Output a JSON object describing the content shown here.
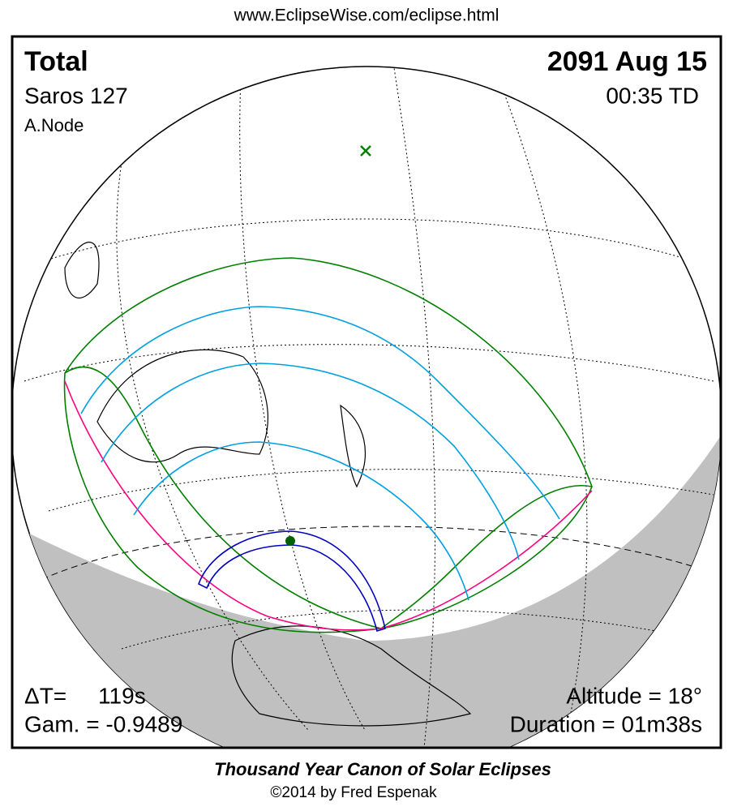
{
  "header": {
    "url": "www.EclipseWise.com/eclipse.html"
  },
  "map": {
    "eclipse_type": "Total",
    "date": "2091 Aug 15",
    "saros": "Saros 127",
    "time": "00:35 TD",
    "node": "A.Node",
    "delta_t": "ΔT=     119s",
    "gamma": "Gam. = -0.9489",
    "altitude": "Altitude = 18°",
    "duration": "Duration = 01m38s"
  },
  "footer": {
    "title": "Thousand Year Canon of Solar Eclipses",
    "credit": "©2014 by Fred Espenak"
  }
}
